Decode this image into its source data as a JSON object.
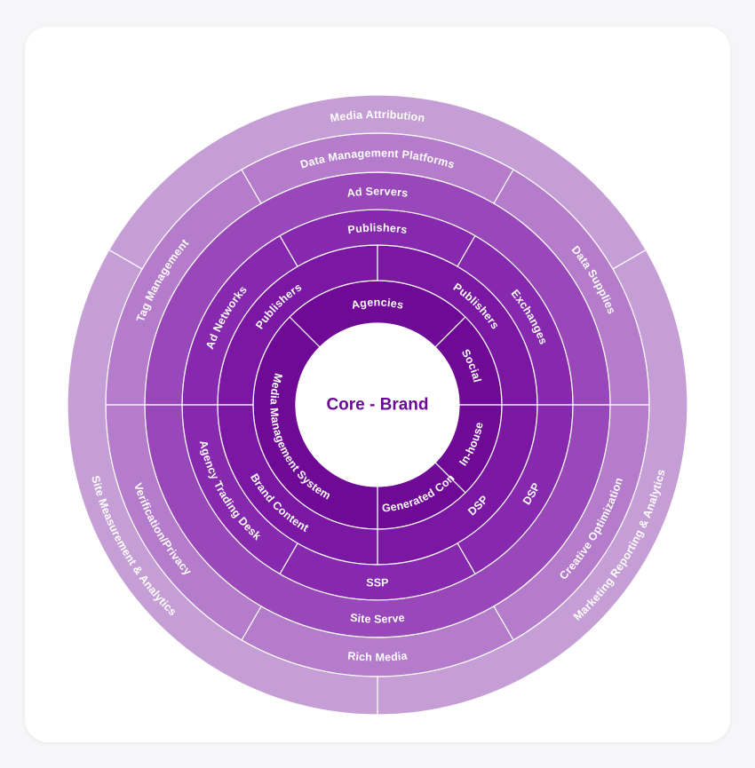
{
  "core": {
    "label": "Core - Brand"
  },
  "colors": {
    "ring1": "#6f0a97",
    "ring2": "#7a18a4",
    "ring3": "#8629ae",
    "ring4": "#9848b8",
    "ring5": "#b47cca",
    "ring6": "#c59ed5",
    "core_text": "#6b0a96",
    "core_fill": "#ffffff"
  },
  "rings": [
    {
      "level": 1,
      "segments": [
        {
          "label": "Agencies",
          "from": -45,
          "to": 45
        },
        {
          "label": "Social",
          "from": 45,
          "to": 90
        },
        {
          "label": "In-house",
          "from": 90,
          "to": 135
        },
        {
          "label": "User Generated Content",
          "from": 135,
          "to": 180
        },
        {
          "label": "Media Management System",
          "from": 180,
          "to": 315
        }
      ]
    },
    {
      "level": 2,
      "segments": [
        {
          "label": "Publishers",
          "from": -90,
          "to": 0
        },
        {
          "label": "Publishers",
          "from": 0,
          "to": 90
        },
        {
          "label": "DSP",
          "from": 90,
          "to": 180
        },
        {
          "label": "Brand Content",
          "from": 180,
          "to": 270
        }
      ]
    },
    {
      "level": 3,
      "segments": [
        {
          "label": "Ad Networks",
          "from": -90,
          "to": -30
        },
        {
          "label": "Publishers",
          "from": -30,
          "to": 30
        },
        {
          "label": "Exchanges",
          "from": 30,
          "to": 90
        },
        {
          "label": "DSP",
          "from": 90,
          "to": 150
        },
        {
          "label": "SSP",
          "from": 150,
          "to": 210
        },
        {
          "label": "Agency Trading Desk",
          "from": 210,
          "to": 270
        }
      ]
    },
    {
      "level": 4,
      "segments": [
        {
          "label": "Ad Servers",
          "from": -90,
          "to": 90
        },
        {
          "label": "Site Serve",
          "from": 90,
          "to": 270
        }
      ]
    },
    {
      "level": 5,
      "segments": [
        {
          "label": "Tag Management",
          "from": -90,
          "to": -30
        },
        {
          "label": "Data Management Platforms",
          "from": -30,
          "to": 30
        },
        {
          "label": "Data Supplies",
          "from": 30,
          "to": 90
        },
        {
          "label": "Creative Optimization",
          "from": 90,
          "to": 150
        },
        {
          "label": "Rich Media",
          "from": 150,
          "to": 210
        },
        {
          "label": "Verification/Privacy",
          "from": 210,
          "to": 270
        }
      ]
    },
    {
      "level": 6,
      "segments": [
        {
          "label": "Media Attribution",
          "from": -60,
          "to": 60
        },
        {
          "label": "Marketing Reporting & Analytics",
          "from": 60,
          "to": 180
        },
        {
          "label": "Site Measurement & Analytics",
          "from": 180,
          "to": 300
        }
      ]
    }
  ]
}
